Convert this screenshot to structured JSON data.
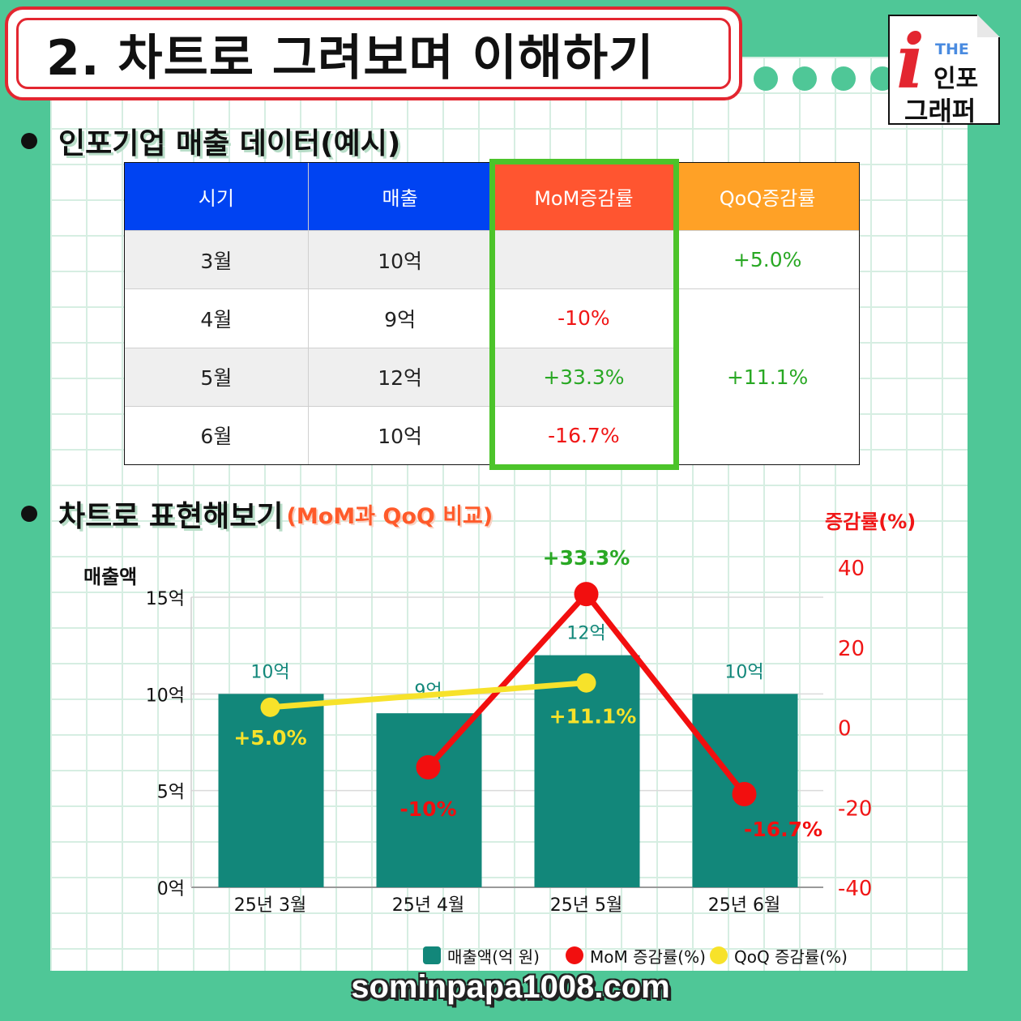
{
  "title": "2. 차트로 그려보며 이해하기",
  "logo": {
    "the": "THE",
    "line1": "인포",
    "line2": "그래퍼"
  },
  "section1": "인포기업 매출 데이터(예시)",
  "table": {
    "headers": [
      "시기",
      "매출",
      "MoM증감률",
      "QoQ증감률"
    ],
    "header_colors": [
      "#0043f2",
      "#0043f2",
      "#ff5530",
      "#ffa126"
    ],
    "rows": [
      {
        "period": "3월",
        "sales": "10억",
        "mom": "",
        "qoq": "+5.0%"
      },
      {
        "period": "4월",
        "sales": "9억",
        "mom": "-10%",
        "qoq": ""
      },
      {
        "period": "5월",
        "sales": "12억",
        "mom": "+33.3%",
        "qoq": "+11.1%"
      },
      {
        "period": "6월",
        "sales": "10억",
        "mom": "-16.7%",
        "qoq": ""
      }
    ]
  },
  "section2": {
    "title": "차트로 표현해보기",
    "sub": "(MoM과 QoQ 비교)"
  },
  "chart_data": {
    "type": "bar",
    "categories": [
      "25년 3월",
      "25년 4월",
      "25년 5월",
      "25년 6월"
    ],
    "y_left_label": "매출액",
    "y_right_label": "증감률(%)",
    "y_left_ticks": [
      "0억",
      "5억",
      "10억",
      "15억"
    ],
    "y_left_range": [
      0,
      15
    ],
    "y_right_ticks": [
      "-40",
      "-20",
      "0",
      "20",
      "40"
    ],
    "y_right_range": [
      -40,
      40
    ],
    "series": [
      {
        "name": "매출액(억 원)",
        "kind": "bar",
        "color": "#12877a",
        "values": [
          10,
          9,
          12,
          10
        ],
        "labels": [
          "10억",
          "9억",
          "12억",
          "10억"
        ]
      },
      {
        "name": "MoM 증감률(%)",
        "kind": "line",
        "color": "#f20f0f",
        "values": [
          null,
          -10,
          33.3,
          -16.7
        ],
        "labels": [
          "",
          "-10%",
          "+33.3%",
          "-16.7%"
        ]
      },
      {
        "name": "QoQ 증감률(%)",
        "kind": "line",
        "color": "#f7e22a",
        "values": [
          5.0,
          null,
          11.1,
          null
        ],
        "labels": [
          "+5.0%",
          "",
          "+11.1%",
          ""
        ]
      }
    ],
    "grid": "horizontal",
    "legend": "bottom-right"
  },
  "footer": "sominpapa1008.com"
}
